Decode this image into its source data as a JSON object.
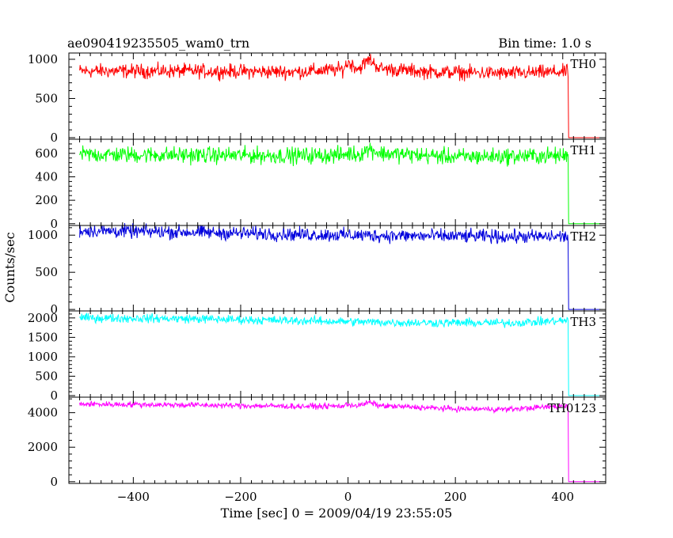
{
  "chart_data": {
    "type": "line",
    "title": "ae090419235505_wam0_trn",
    "bin_time": "Bin time: 1.0 s",
    "xlabel": "Time [sec] 0 = 2009/04/19 23:55:05",
    "ylabel": "Counts/sec",
    "xlim": [
      -520,
      480
    ],
    "x_ticks": [
      -400,
      -200,
      0,
      200,
      400
    ],
    "x_tick_labels": [
      "−400",
      "−200",
      "0",
      "200",
      "400"
    ],
    "drop_time": 410,
    "end_time": 470,
    "panels": [
      {
        "name": "TH0",
        "color": "#ff0000",
        "ylim": [
          -20,
          1080
        ],
        "y_ticks": [
          0,
          500,
          1000
        ],
        "y_tick_labels": [
          "0",
          "500",
          "1000"
        ],
        "profile": [
          [
            -500,
            850
          ],
          [
            -300,
            850
          ],
          [
            -100,
            840
          ],
          [
            -10,
            870
          ],
          [
            0,
            960
          ],
          [
            20,
            880
          ],
          [
            40,
            1000
          ],
          [
            60,
            880
          ],
          [
            150,
            840
          ],
          [
            300,
            820
          ],
          [
            405,
            840
          ]
        ],
        "noise": 45,
        "after_drop": 0
      },
      {
        "name": "TH1",
        "color": "#00ff00",
        "ylim": [
          -15,
          720
        ],
        "y_ticks": [
          0,
          200,
          400,
          600
        ],
        "y_tick_labels": [
          "0",
          "200",
          "400",
          "600"
        ],
        "profile": [
          [
            -500,
            590
          ],
          [
            -300,
            585
          ],
          [
            -100,
            580
          ],
          [
            -10,
            585
          ],
          [
            0,
            600
          ],
          [
            20,
            590
          ],
          [
            40,
            640
          ],
          [
            60,
            600
          ],
          [
            200,
            570
          ],
          [
            405,
            580
          ]
        ],
        "noise": 35,
        "after_drop": 0
      },
      {
        "name": "TH2",
        "color": "#0000dd",
        "ylim": [
          -20,
          1130
        ],
        "y_ticks": [
          0,
          500,
          1000
        ],
        "y_tick_labels": [
          "0",
          "500",
          "1000"
        ],
        "profile": [
          [
            -500,
            1060
          ],
          [
            -300,
            1040
          ],
          [
            -100,
            1010
          ],
          [
            100,
            990
          ],
          [
            300,
            980
          ],
          [
            405,
            980
          ]
        ],
        "noise": 45,
        "after_drop": 0
      },
      {
        "name": "TH3",
        "color": "#00ffff",
        "ylim": [
          -40,
          2180
        ],
        "y_ticks": [
          0,
          500,
          1000,
          1500,
          2000
        ],
        "y_tick_labels": [
          "0",
          "500",
          "1000",
          "1500",
          "2000"
        ],
        "profile": [
          [
            -500,
            2000
          ],
          [
            -300,
            1980
          ],
          [
            -100,
            1930
          ],
          [
            100,
            1880
          ],
          [
            300,
            1870
          ],
          [
            405,
            1930
          ]
        ],
        "noise": 55,
        "after_drop": 0
      },
      {
        "name": "TH0123",
        "color": "#ff00ff",
        "ylim": [
          -100,
          4900
        ],
        "y_ticks": [
          0,
          2000,
          4000
        ],
        "y_tick_labels": [
          "0",
          "2000",
          "4000"
        ],
        "profile": [
          [
            -500,
            4500
          ],
          [
            -300,
            4450
          ],
          [
            -100,
            4370
          ],
          [
            -10,
            4380
          ],
          [
            0,
            4480
          ],
          [
            20,
            4400
          ],
          [
            40,
            4600
          ],
          [
            60,
            4400
          ],
          [
            200,
            4220
          ],
          [
            300,
            4200
          ],
          [
            405,
            4400
          ]
        ],
        "noise": 80,
        "after_drop": 0
      }
    ]
  }
}
